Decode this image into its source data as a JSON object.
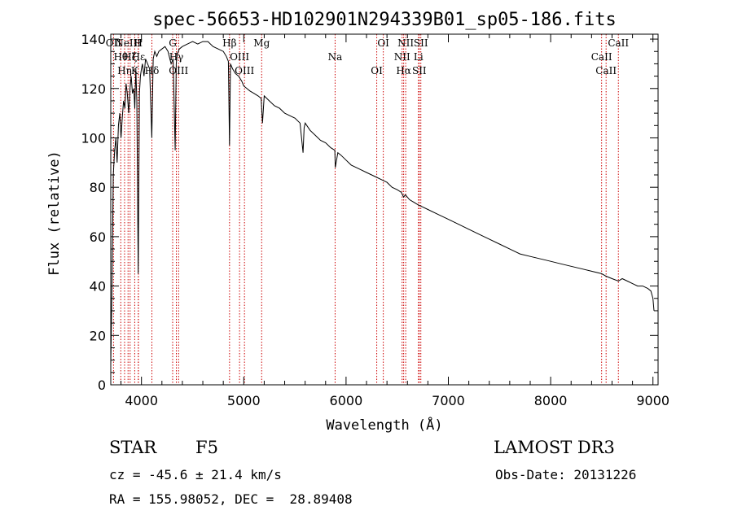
{
  "chart_data": {
    "type": "line",
    "title": "spec-56653-HD102901N294339B01_sp05-186.fits",
    "xlabel": "Wavelength (Å)",
    "ylabel": "Flux (relative)",
    "xlim": [
      3700,
      9050
    ],
    "ylim": [
      0,
      142
    ],
    "x_ticks": [
      4000,
      5000,
      6000,
      7000,
      8000,
      9000
    ],
    "y_ticks": [
      0,
      20,
      40,
      60,
      80,
      100,
      120,
      140
    ],
    "series": [
      {
        "name": "flux",
        "x": [
          3700,
          3712,
          3725,
          3738,
          3750,
          3762,
          3775,
          3788,
          3800,
          3812,
          3825,
          3838,
          3850,
          3862,
          3875,
          3888,
          3900,
          3912,
          3925,
          3935,
          3945,
          3955,
          3968,
          3980,
          3990,
          4000,
          4010,
          4025,
          4040,
          4060,
          4080,
          4101,
          4115,
          4130,
          4150,
          4170,
          4200,
          4230,
          4260,
          4290,
          4310,
          4330,
          4340,
          4350,
          4370,
          4400,
          4450,
          4500,
          4550,
          4600,
          4650,
          4700,
          4750,
          4800,
          4830,
          4850,
          4861,
          4870,
          4890,
          4920,
          4950,
          4980,
          5000,
          5030,
          5060,
          5100,
          5140,
          5170,
          5183,
          5200,
          5250,
          5300,
          5350,
          5400,
          5450,
          5500,
          5550,
          5580,
          5590,
          5600,
          5650,
          5700,
          5750,
          5800,
          5850,
          5890,
          5895,
          5920,
          5950,
          6000,
          6050,
          6100,
          6150,
          6200,
          6250,
          6300,
          6350,
          6400,
          6450,
          6500,
          6540,
          6563,
          6580,
          6620,
          6700,
          6800,
          6900,
          7000,
          7100,
          7200,
          7300,
          7400,
          7500,
          7600,
          7700,
          7800,
          7900,
          8000,
          8100,
          8200,
          8300,
          8400,
          8498,
          8542,
          8600,
          8662,
          8700,
          8750,
          8800,
          8850,
          8900,
          8950,
          8980,
          9000,
          9010
        ],
        "values": [
          8,
          40,
          85,
          95,
          100,
          90,
          105,
          110,
          100,
          108,
          115,
          112,
          122,
          118,
          110,
          120,
          125,
          118,
          120,
          112,
          128,
          115,
          45,
          118,
          125,
          128,
          130,
          125,
          132,
          130,
          128,
          100,
          132,
          135,
          133,
          135,
          136,
          137,
          135,
          130,
          132,
          95,
          130,
          134,
          136,
          137,
          138,
          139,
          138,
          139,
          139,
          137,
          136,
          135,
          133,
          131,
          97,
          130,
          128,
          126,
          125,
          123,
          121,
          120,
          119,
          118,
          117,
          116,
          106,
          117,
          115,
          113,
          112,
          110,
          109,
          108,
          106,
          94,
          104,
          106,
          103,
          101,
          99,
          98,
          96,
          95,
          88,
          94,
          93,
          91,
          89,
          88,
          87,
          86,
          85,
          84,
          83,
          82,
          80,
          79,
          78,
          76,
          77,
          75,
          73,
          71,
          69,
          67,
          65,
          63,
          61,
          59,
          57,
          55,
          53,
          52,
          51,
          50,
          49,
          48,
          47,
          46,
          45,
          44,
          43,
          42,
          43,
          42,
          41,
          40,
          40,
          39,
          38,
          35,
          30
        ]
      }
    ],
    "lines": [
      {
        "wl": 3727,
        "label": "OII"
      },
      {
        "wl": 3798,
        "label": "Hθ"
      },
      {
        "wl": 3835,
        "label": "Hη"
      },
      {
        "wl": 3869,
        "label": "NeIII"
      },
      {
        "wl": 3889,
        "label": "Hζ"
      },
      {
        "wl": 3934,
        "label": "K"
      },
      {
        "wl": 3969,
        "label": "H"
      },
      {
        "wl": 3970,
        "label": "Hε"
      },
      {
        "wl": 4102,
        "label": "Hδ"
      },
      {
        "wl": 4305,
        "label": "G"
      },
      {
        "wl": 4341,
        "label": "Hγ"
      },
      {
        "wl": 4363,
        "label": "OIII"
      },
      {
        "wl": 4861,
        "label": "Hβ"
      },
      {
        "wl": 4959,
        "label": "OIII"
      },
      {
        "wl": 5007,
        "label": "OIII"
      },
      {
        "wl": 5175,
        "label": "Mg"
      },
      {
        "wl": 5893,
        "label": "Na"
      },
      {
        "wl": 6300,
        "label": "OI"
      },
      {
        "wl": 6364,
        "label": "OI"
      },
      {
        "wl": 6548,
        "label": "NII"
      },
      {
        "wl": 6563,
        "label": "Hα"
      },
      {
        "wl": 6583,
        "label": "NII"
      },
      {
        "wl": 6708,
        "label": "Li"
      },
      {
        "wl": 6716,
        "label": "SII"
      },
      {
        "wl": 6731,
        "label": "SII"
      },
      {
        "wl": 8498,
        "label": "CaII"
      },
      {
        "wl": 8542,
        "label": "CaII"
      },
      {
        "wl": 8662,
        "label": "CaII"
      }
    ],
    "line_color": "#cc0000",
    "grid": false
  },
  "info": {
    "class": "STAR",
    "subclass": "F5",
    "survey": "LAMOST DR3",
    "cz": "cz = -45.6 ± 21.4 km/s",
    "obsdate": "Obs-Date: 20131226",
    "radec": "RA = 155.98052, DEC =  28.89408"
  }
}
